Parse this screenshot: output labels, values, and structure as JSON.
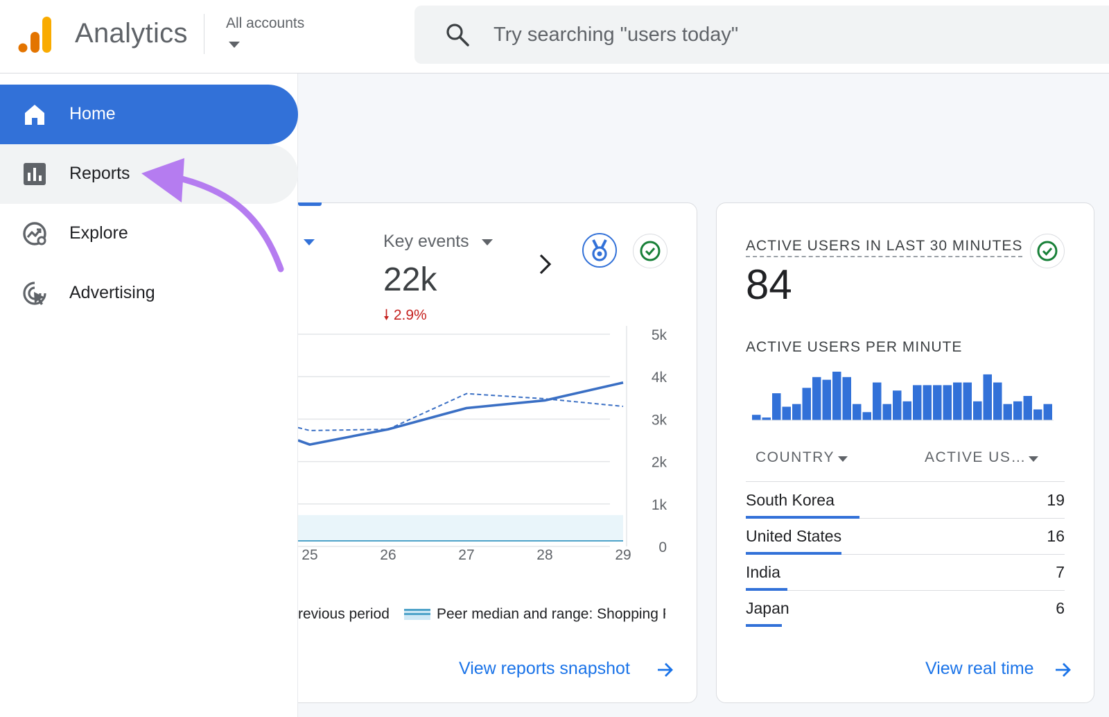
{
  "header": {
    "product_name": "Analytics",
    "account_picker_label": "All accounts",
    "search_placeholder": "Try searching \"users today\""
  },
  "sidebar": {
    "items": [
      {
        "label": "Home",
        "icon": "home-icon",
        "active": true
      },
      {
        "label": "Reports",
        "icon": "reports-icon",
        "hovered": true
      },
      {
        "label": "Explore",
        "icon": "explore-icon"
      },
      {
        "label": "Advertising",
        "icon": "advertising-icon"
      }
    ]
  },
  "overview_card": {
    "metric_title": "Key events",
    "metric_value": "22k",
    "metric_change": "2.9%",
    "metric_change_direction": "down",
    "legend_previous": "revious period",
    "legend_peer": "Peer median and range: Shopping F",
    "link_label": "View reports snapshot"
  },
  "chart_data": {
    "type": "line",
    "x": [
      "25",
      "26",
      "27",
      "28",
      "29"
    ],
    "y_ticks": [
      "5k",
      "4k",
      "3k",
      "2k",
      "1k",
      "0"
    ],
    "ylim": [
      0,
      5000
    ],
    "grid": true,
    "series": [
      {
        "style": "solid",
        "color": "#3a6fc4",
        "x": [
          24.85,
          25,
          26,
          27,
          28,
          29
        ],
        "values": [
          2500,
          2400,
          2760,
          3260,
          3440,
          3860
        ]
      },
      {
        "style": "dashed",
        "color": "#3a6fc4",
        "x": [
          24.85,
          25,
          26,
          27,
          28,
          29
        ],
        "values": [
          2800,
          2730,
          2760,
          3600,
          3480,
          3300
        ]
      },
      {
        "style": "band",
        "color": "#cfe8f5",
        "x": [
          24.85,
          29
        ],
        "values": [
          660,
          740
        ]
      }
    ]
  },
  "realtime_card": {
    "title": "ACTIVE USERS IN LAST 30 MINUTES",
    "value": "84",
    "subtitle": "ACTIVE USERS PER MINUTE",
    "per_minute": [
      1,
      0.5,
      5,
      2.5,
      3,
      6,
      8,
      7.5,
      9,
      8,
      3,
      1.5,
      7,
      3,
      5.5,
      3.5,
      6.5,
      6.5,
      6.5,
      6.5,
      7,
      7,
      3.5,
      8.5,
      7,
      3,
      3.5,
      4.5,
      2,
      3
    ],
    "columns": [
      "COUNTRY",
      "ACTIVE US…"
    ],
    "rows": [
      {
        "country": "South Korea",
        "count": 19
      },
      {
        "country": "United States",
        "count": 16
      },
      {
        "country": "India",
        "count": 7
      },
      {
        "country": "Japan",
        "count": 6
      }
    ],
    "link_label": "View real time"
  },
  "colors": {
    "accent": "#3271d8",
    "link": "#1a73e8",
    "negative": "#c5221f",
    "annotation": "#b57cf0",
    "success": "#188038"
  }
}
